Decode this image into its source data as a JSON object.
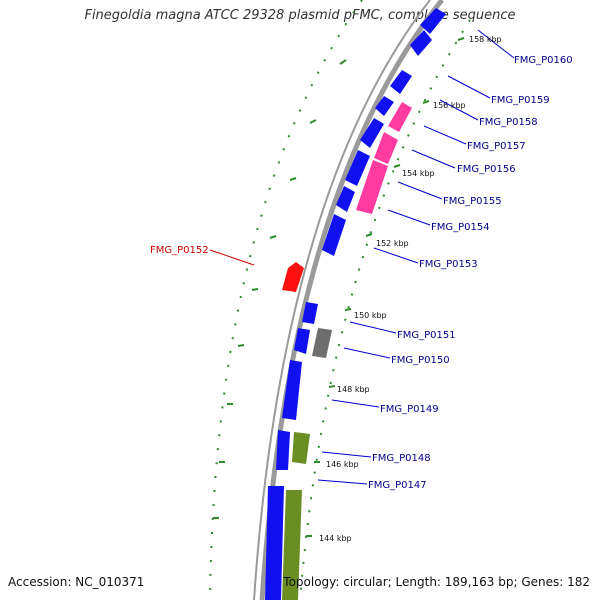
{
  "title": "Finegoldia magna ATCC 29328 plasmid pFMC, complete sequence",
  "accession": "Accession: NC_010371",
  "footer": "Topology: circular; Length: 189,163 bp; Genes: 182",
  "colors": {
    "backbone": "#9a9a9a",
    "blue": "#1010f0",
    "pink": "#ff3ba0",
    "red": "#ff1010",
    "gray": "#6e6e6e",
    "olive": "#6b8e23",
    "tick": "#2e8b2e",
    "label_blue": "#00008b",
    "label_red": "#cc0000"
  },
  "kbp_labels": [
    "158 kbp",
    "156 kbp",
    "154 kbp",
    "152 kbp",
    "150 kbp",
    "148 kbp",
    "146 kbp",
    "144 kbp"
  ],
  "gene_labels": [
    {
      "text": "FMG_P0160",
      "color": "blue"
    },
    {
      "text": "FMG_P0159",
      "color": "blue"
    },
    {
      "text": "FMG_P0158",
      "color": "blue"
    },
    {
      "text": "FMG_P0157",
      "color": "blue"
    },
    {
      "text": "FMG_P0156",
      "color": "blue"
    },
    {
      "text": "FMG_P0155",
      "color": "blue"
    },
    {
      "text": "FMG_P0154",
      "color": "blue"
    },
    {
      "text": "FMG_P0153",
      "color": "blue"
    },
    {
      "text": "FMG_P0152",
      "color": "red"
    },
    {
      "text": "FMG_P0151",
      "color": "blue"
    },
    {
      "text": "FMG_P0150",
      "color": "blue"
    },
    {
      "text": "FMG_P0149",
      "color": "blue"
    },
    {
      "text": "FMG_P0148",
      "color": "blue"
    },
    {
      "text": "FMG_P0147",
      "color": "blue"
    }
  ]
}
